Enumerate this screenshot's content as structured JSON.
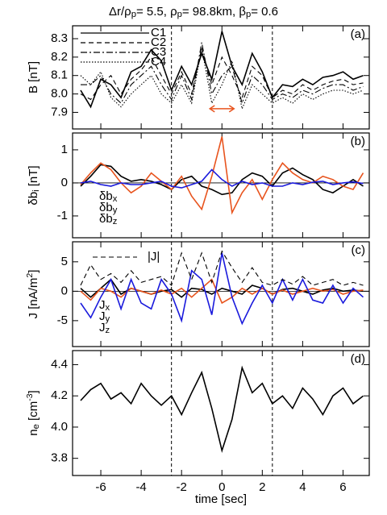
{
  "title": [
    {
      "text": "Δr/ρ"
    },
    {
      "text": "p",
      "sub": true
    },
    {
      "text": "=   5.5, ρ"
    },
    {
      "text": "p",
      "sub": true
    },
    {
      "text": "=   98.8km, β"
    },
    {
      "text": "p",
      "sub": true
    },
    {
      "text": "= 0.6"
    }
  ],
  "chart_data": [
    {
      "type": "line",
      "panel_label": "(a)",
      "ylabel": [
        {
          "text": "B [nT]"
        }
      ],
      "x": [
        -7,
        -6.5,
        -6,
        -5.5,
        -5,
        -4.5,
        -4,
        -3.5,
        -3,
        -2.5,
        -2,
        -1.5,
        -1,
        -0.5,
        0,
        0.5,
        1,
        1.5,
        2,
        2.5,
        3,
        3.5,
        4,
        4.5,
        5,
        5.5,
        6,
        6.5,
        7
      ],
      "xlim": [
        -7.4,
        7.3
      ],
      "xticks": [
        -6,
        -4,
        -2,
        0,
        2,
        4,
        6
      ],
      "vlines": [
        -2.5,
        2.5
      ],
      "ylim": [
        7.81,
        8.37
      ],
      "yticks": [
        {
          "value": 7.9,
          "label": "7.9"
        },
        {
          "value": 8,
          "label": "8.0"
        },
        {
          "value": 8.1,
          "label": "8.1"
        },
        {
          "value": 8.2,
          "label": "8.2"
        },
        {
          "value": 8.3,
          "label": "8.3"
        }
      ],
      "legend": "lines",
      "arrow": {
        "x": [
          -0.6,
          0.6
        ],
        "y": 7.92,
        "color": "#e8541e"
      },
      "series": [
        {
          "name": "C1",
          "color": "#000000",
          "dash": "solid",
          "values": [
            8.02,
            7.93,
            8.08,
            8.05,
            7.98,
            8.12,
            8.15,
            8.24,
            8.18,
            8.02,
            8.15,
            8.05,
            8.22,
            8.08,
            8.34,
            8.15,
            8.05,
            8.22,
            8.12,
            7.98,
            8.05,
            8.04,
            8.08,
            8.05,
            8.09,
            8.1,
            8.12,
            8.08,
            8.1
          ]
        },
        {
          "name": "C2",
          "color": "#000000",
          "dash": "dashed",
          "values": [
            8.0,
            7.97,
            8.05,
            8.1,
            8.0,
            8.08,
            8.13,
            8.2,
            8.1,
            8.0,
            8.12,
            8.0,
            8.25,
            8.05,
            8.2,
            8.1,
            7.98,
            8.15,
            8.1,
            7.98,
            8.02,
            8.0,
            8.05,
            8.02,
            8.05,
            8.07,
            8.08,
            8.05,
            8.06
          ]
        },
        {
          "name": "C3",
          "color": "#000000",
          "dash": "dashdot",
          "values": [
            8.05,
            8.05,
            8.1,
            8.0,
            7.95,
            8.05,
            8.1,
            8.15,
            8.05,
            7.97,
            8.1,
            7.97,
            8.28,
            8.0,
            8.1,
            8.15,
            7.95,
            8.1,
            8.05,
            7.97,
            8.0,
            7.98,
            8.02,
            8.0,
            8.03,
            8.05,
            8.05,
            8.02,
            8.04
          ]
        },
        {
          "name": "C4",
          "color": "#000000",
          "dash": "dotted",
          "values": [
            8.1,
            8.05,
            8.12,
            7.98,
            7.93,
            8.0,
            8.05,
            8.1,
            8.0,
            7.95,
            8.05,
            7.95,
            8.25,
            7.95,
            8.05,
            8.18,
            7.92,
            8.05,
            8.0,
            7.95,
            7.98,
            7.95,
            8.0,
            7.97,
            8.0,
            8.02,
            8.02,
            8.0,
            8.02
          ]
        }
      ]
    },
    {
      "type": "line",
      "panel_label": "(b)",
      "ylabel": [
        {
          "text": "δb"
        },
        {
          "text": "i",
          "sub": true
        },
        {
          "text": " [nT]"
        }
      ],
      "x": [
        -7,
        -6.5,
        -6,
        -5.5,
        -5,
        -4.5,
        -4,
        -3.5,
        -3,
        -2.5,
        -2,
        -1.5,
        -1,
        -0.5,
        0,
        0.5,
        1,
        1.5,
        2,
        2.5,
        3,
        3.5,
        4,
        4.5,
        5,
        5.5,
        6,
        6.5,
        7
      ],
      "xlim": [
        -7.4,
        7.3
      ],
      "xticks": [
        -6,
        -4,
        -2,
        0,
        2,
        4,
        6
      ],
      "vlines": [
        -2.5,
        2.5
      ],
      "ylim": [
        -1.66,
        1.51
      ],
      "yticks": [
        -1,
        0,
        1
      ],
      "zero_line": true,
      "legend": "text",
      "series": [
        {
          "name": [
            {
              "text": "δb"
            },
            {
              "text": "x",
              "sub": true
            }
          ],
          "color": "#000000",
          "dash": "solid",
          "values": [
            -0.1,
            0.2,
            0.55,
            0.5,
            0.2,
            0.05,
            0.1,
            0.05,
            -0.05,
            -0.2,
            0.1,
            0.2,
            -0.1,
            -0.2,
            -0.35,
            -0.3,
            0.1,
            0.3,
            0.2,
            -0.1,
            0.3,
            0.45,
            0.25,
            0.1,
            -0.2,
            -0.3,
            -0.1,
            0.1,
            -0.1
          ]
        },
        {
          "name": [
            {
              "text": "δb"
            },
            {
              "text": "y",
              "sub": true
            }
          ],
          "color": "#e8541e",
          "dash": "solid",
          "values": [
            -0.05,
            0.3,
            0.6,
            0.4,
            0,
            -0.3,
            -0.1,
            0.3,
            0.05,
            -0.2,
            0.2,
            -0.4,
            -0.8,
            0.2,
            1.4,
            -0.9,
            -0.3,
            0.1,
            -0.5,
            0.1,
            0.6,
            0.3,
            0.1,
            0,
            0.2,
            0.1,
            -0.1,
            -0.2,
            0.3
          ]
        },
        {
          "name": [
            {
              "text": "δb"
            },
            {
              "text": "z",
              "sub": true
            }
          ],
          "color": "#1a1adc",
          "dash": "solid",
          "values": [
            0,
            0.05,
            -0.05,
            -0.1,
            0,
            -0.05,
            -0.05,
            0,
            0.05,
            -0.1,
            -0.15,
            -0.05,
            0.05,
            0.4,
            0.1,
            -0.1,
            0.05,
            -0.05,
            0,
            -0.1,
            -0.1,
            0,
            -0.05,
            0.02,
            0.05,
            -0.05,
            0,
            0.03,
            -0.02
          ]
        }
      ]
    },
    {
      "type": "line",
      "panel_label": "(c)",
      "ylabel": [
        {
          "text": "J [nA/m"
        },
        {
          "text": "2",
          "sup": true
        },
        {
          "text": "]"
        }
      ],
      "x": [
        -7,
        -6.5,
        -6,
        -5.5,
        -5,
        -4.5,
        -4,
        -3.5,
        -3,
        -2.5,
        -2,
        -1.5,
        -1,
        -0.5,
        0,
        0.5,
        1,
        1.5,
        2,
        2.5,
        3,
        3.5,
        4,
        4.5,
        5,
        5.5,
        6,
        6.5,
        7
      ],
      "xlim": [
        -7.4,
        7.3
      ],
      "xticks": [
        -6,
        -4,
        -2,
        0,
        2,
        4,
        6
      ],
      "vlines": [
        -2.5,
        2.5
      ],
      "ylim": [
        -9.4,
        8.4
      ],
      "yticks": [
        -5,
        0,
        5
      ],
      "zero_line": true,
      "legend": "text",
      "series": [
        {
          "name": [
            {
              "text": "J"
            },
            {
              "text": "x",
              "sub": true
            }
          ],
          "color": "#000000",
          "dash": "solid",
          "values": [
            0.5,
            -1,
            0.5,
            2,
            -0.5,
            0.5,
            0,
            -0.5,
            0,
            0.3,
            -1,
            0.5,
            0.3,
            -0.5,
            0.5,
            0,
            -0.5,
            1,
            0.5,
            -0.5,
            0.3,
            0.5,
            0,
            -0.5,
            0.2,
            0.5,
            0,
            0.2,
            0
          ]
        },
        {
          "name": [
            {
              "text": "J"
            },
            {
              "text": "y",
              "sub": true
            }
          ],
          "color": "#e8541e",
          "dash": "solid",
          "values": [
            0,
            -1.5,
            0.5,
            0,
            -1,
            0.5,
            0,
            -0.5,
            0.2,
            -0.5,
            0.5,
            -1,
            0.5,
            2,
            -2,
            -1,
            0.5,
            -0.5,
            0.5,
            -0.5,
            0.2,
            -0.5,
            0,
            0.5,
            0,
            0.3,
            -0.5,
            0,
            0.2
          ]
        },
        {
          "name": [
            {
              "text": "J"
            },
            {
              "text": "z",
              "sub": true
            }
          ],
          "color": "#1a1adc",
          "dash": "solid",
          "values": [
            -2,
            -4.5,
            -1,
            2,
            -3,
            2,
            -2,
            -3,
            2,
            -0.5,
            -5,
            3.5,
            2,
            -4,
            6.5,
            -1,
            -5.5,
            -2,
            1,
            -2,
            2,
            -1.5,
            2,
            -1.5,
            -2,
            1,
            -2,
            0.5,
            -1
          ]
        },
        {
          "name": "|J|",
          "color": "#000000",
          "dash": "dashed",
          "values": [
            1,
            4.5,
            2,
            3,
            1.5,
            3.5,
            1.5,
            2,
            2.5,
            1,
            6.5,
            2,
            6.5,
            1.5,
            6.8,
            4,
            1.5,
            4,
            1.5,
            1,
            2,
            1.2,
            2.5,
            1,
            1.5,
            2,
            1,
            1.5,
            1
          ]
        }
      ]
    },
    {
      "type": "line",
      "panel_label": "(d)",
      "ylabel": [
        {
          "text": "n"
        },
        {
          "text": "e",
          "sub": true
        },
        {
          "text": " [cm"
        },
        {
          "text": "-3",
          "sup": true
        },
        {
          "text": "]"
        }
      ],
      "xlabel": "time [sec]",
      "xtick_labels": true,
      "x": [
        -7,
        -6.5,
        -6,
        -5.5,
        -5,
        -4.5,
        -4,
        -3.5,
        -3,
        -2.5,
        -2,
        -1.5,
        -1,
        -0.5,
        0,
        0.5,
        1,
        1.5,
        2,
        2.5,
        3,
        3.5,
        4,
        4.5,
        5,
        5.5,
        6,
        6.5,
        7
      ],
      "xlim": [
        -7.4,
        7.3
      ],
      "xticks": [
        -6,
        -4,
        -2,
        0,
        2,
        4,
        6
      ],
      "vlines": [
        -2.5,
        2.5
      ],
      "ylim": [
        3.69,
        4.49
      ],
      "yticks": [
        {
          "value": 3.8,
          "label": "3.8"
        },
        {
          "value": 4,
          "label": "4.0"
        },
        {
          "value": 4.2,
          "label": "4.2"
        },
        {
          "value": 4.4,
          "label": "4.4"
        }
      ],
      "series": [
        {
          "color": "#000000",
          "dash": "solid",
          "values": [
            4.17,
            4.24,
            4.28,
            4.18,
            4.22,
            4.15,
            4.28,
            4.2,
            4.14,
            4.2,
            4.08,
            4.22,
            4.35,
            4.12,
            3.85,
            4.05,
            4.38,
            4.22,
            4.28,
            4.15,
            4.2,
            4.12,
            4.25,
            4.18,
            4.08,
            4.2,
            4.25,
            4.15,
            4.2
          ]
        }
      ]
    }
  ]
}
